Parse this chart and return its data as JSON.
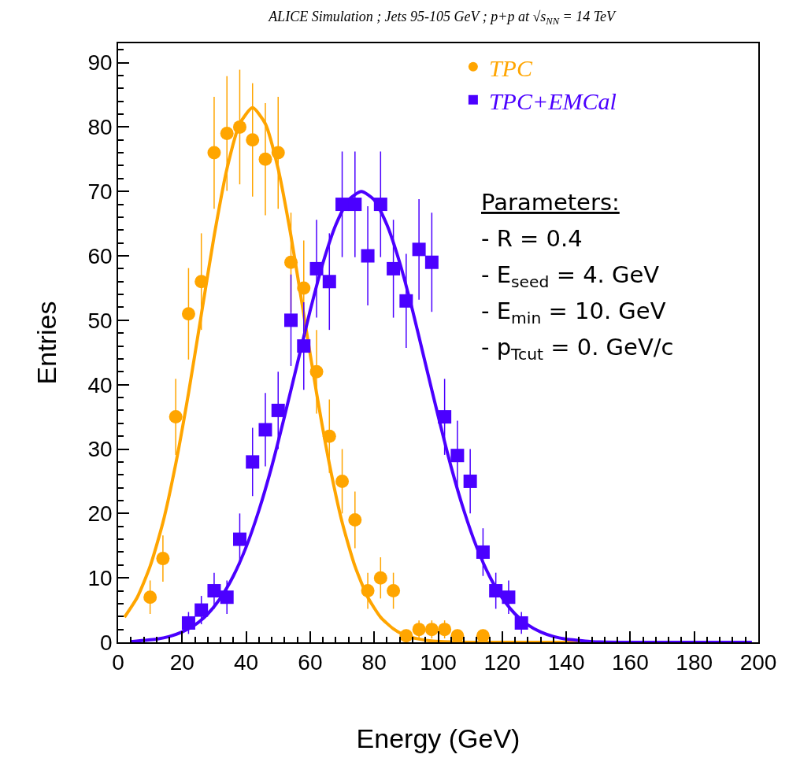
{
  "chart_data": {
    "type": "scatter",
    "title": "ALICE Simulation ; Jets 95-105 GeV ; p+p at √s$_{NN}$ = 14 TeV",
    "xlabel": "Energy (GeV)",
    "ylabel": "Entries",
    "xlim": [
      0,
      200
    ],
    "xticks": [
      0,
      20,
      40,
      60,
      80,
      100,
      120,
      140,
      160,
      180,
      200
    ],
    "ylim": [
      0,
      93
    ],
    "yticks": [
      0,
      10,
      20,
      30,
      40,
      50,
      60,
      70,
      80,
      90
    ],
    "legend": "top right",
    "annotations": [
      "Parameters:",
      "- R = 0.4",
      "- E$_{seed}$ = 4. GeV",
      "- E$_{min}$ = 10. GeV",
      "- p$_{Tcut}$ = 0. GeV/c"
    ],
    "series": [
      {
        "name": "TPC",
        "marker": "circle",
        "color": "#ffa500",
        "x": [
          10,
          14,
          18,
          22,
          26,
          30,
          34,
          38,
          42,
          46,
          50,
          54,
          58,
          62,
          66,
          70,
          74,
          78,
          82,
          86,
          90,
          94,
          98,
          102,
          106,
          114
        ],
        "values": [
          7,
          13,
          35,
          51,
          56,
          76,
          79,
          80,
          78,
          75,
          76,
          59,
          55,
          42,
          32,
          25,
          19,
          8,
          10,
          8,
          1,
          2,
          2,
          2,
          1,
          1
        ],
        "errors": [
          2.6,
          3.6,
          5.9,
          7.1,
          7.5,
          8.7,
          8.9,
          8.9,
          8.8,
          8.7,
          8.7,
          7.7,
          7.4,
          6.5,
          5.7,
          5,
          4.4,
          2.8,
          3.2,
          2.8,
          1,
          1.4,
          1.4,
          1.4,
          1,
          1
        ]
      },
      {
        "name": "TPC+EMCal",
        "marker": "square",
        "color": "#4b00ff",
        "x": [
          22,
          26,
          30,
          34,
          38,
          42,
          46,
          50,
          54,
          58,
          62,
          66,
          70,
          74,
          78,
          82,
          86,
          90,
          94,
          98,
          102,
          106,
          110,
          114,
          118,
          122,
          126
        ],
        "values": [
          3,
          5,
          8,
          7,
          16,
          28,
          33,
          36,
          50,
          46,
          58,
          56,
          68,
          68,
          60,
          68,
          58,
          53,
          61,
          59,
          35,
          29,
          25,
          14,
          8,
          7,
          3
        ],
        "errors": [
          1.7,
          2.2,
          2.8,
          2.6,
          4,
          5.3,
          5.7,
          6,
          7.1,
          6.8,
          7.6,
          7.5,
          8.2,
          8.2,
          7.7,
          8.2,
          7.6,
          7.3,
          7.8,
          7.7,
          5.9,
          5.4,
          5,
          3.7,
          2.8,
          2.6,
          1.7
        ]
      },
      {
        "type": "line",
        "color": "#ffa500",
        "x": [
          2,
          6,
          10,
          14,
          18,
          22,
          26,
          30,
          34,
          38,
          42,
          46,
          50,
          54,
          58,
          62,
          66,
          70,
          74,
          78,
          82,
          86,
          90,
          94,
          98,
          102,
          110,
          158
        ],
        "values": [
          3.9,
          7.0,
          11.8,
          18.6,
          27.7,
          38.7,
          50.9,
          63.1,
          73.5,
          80.5,
          83,
          80.5,
          73.5,
          63.1,
          50.9,
          38.7,
          27.7,
          18.6,
          11.8,
          7.0,
          3.9,
          2.1,
          1.0,
          0.5,
          0.2,
          0.1,
          0,
          0
        ]
      },
      {
        "type": "line",
        "color": "#4b00ff",
        "x": [
          4,
          8,
          12,
          16,
          20,
          24,
          28,
          32,
          36,
          40,
          44,
          48,
          52,
          56,
          60,
          64,
          68,
          72,
          76,
          80,
          84,
          88,
          92,
          96,
          100,
          104,
          108,
          112,
          116,
          120,
          124,
          128,
          132,
          136,
          140,
          144,
          148,
          160,
          180,
          198
        ],
        "values": [
          0.1,
          0.3,
          0.5,
          0.9,
          1.6,
          2.7,
          4.4,
          6.9,
          10.3,
          14.8,
          20.5,
          27.3,
          35.1,
          43.3,
          51.5,
          58.9,
          64.8,
          68.7,
          70,
          68.7,
          64.8,
          58.9,
          51.5,
          43.3,
          35.1,
          27.3,
          20.5,
          14.8,
          10.3,
          6.9,
          4.4,
          2.7,
          1.6,
          0.9,
          0.5,
          0.3,
          0.1,
          0,
          0,
          0
        ]
      }
    ]
  }
}
